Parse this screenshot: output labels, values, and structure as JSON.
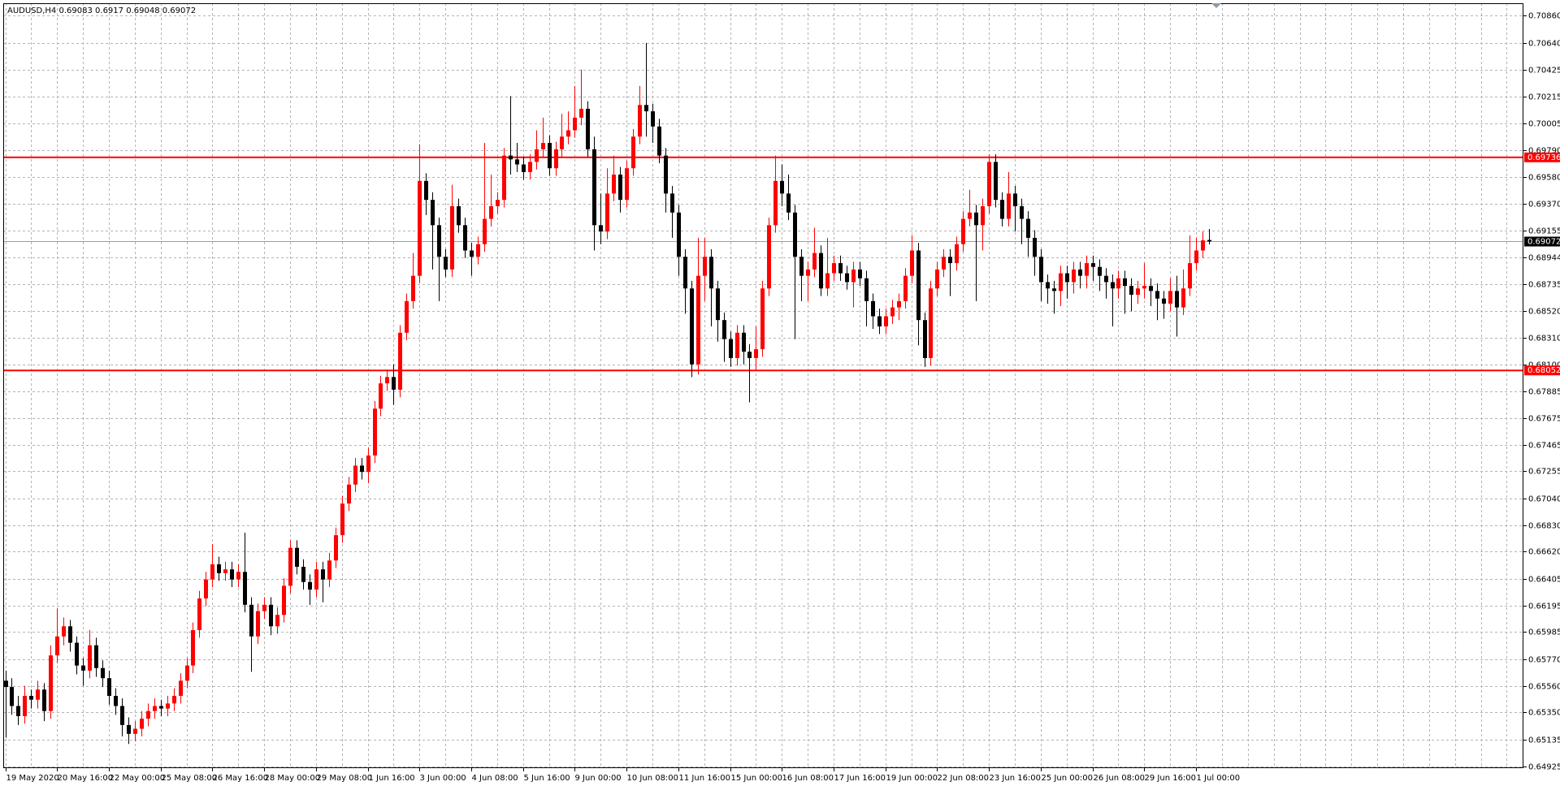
{
  "chart_data": {
    "type": "candlestick",
    "symbol": "AUDUSD,H4",
    "up_color": "#ff0000",
    "down_color": "#000000",
    "hline_color": "#ff0000",
    "price_line_color": "#8da2b8",
    "grid": true,
    "ylim": [
      0.64909,
      0.70954
    ],
    "yticks": [
      {
        "value": 0.7086,
        "label": "0.70860"
      },
      {
        "value": 0.7064,
        "label": "0.70640"
      },
      0.70425,
      0.70215,
      0.70005,
      {
        "value": 0.6979,
        "label": "0.69790"
      },
      {
        "value": 0.6958,
        "label": "0.69580"
      },
      {
        "value": 0.6937,
        "label": "0.69370"
      },
      0.69155,
      0.68944,
      0.68735,
      {
        "value": 0.6852,
        "label": "0.68520"
      },
      {
        "value": 0.6831,
        "label": "0.68310"
      },
      {
        "value": 0.681,
        "label": "0.68100"
      },
      0.67885,
      0.67675,
      0.67465,
      0.67255,
      {
        "value": 0.6704,
        "label": "0.67040"
      },
      {
        "value": 0.6683,
        "label": "0.66830"
      },
      {
        "value": 0.6662,
        "label": "0.66620"
      },
      0.66405,
      0.66195,
      0.65985,
      {
        "value": 0.6577,
        "label": "0.65770"
      },
      {
        "value": 0.6556,
        "label": "0.65560"
      },
      {
        "value": 0.6535,
        "label": "0.65350"
      },
      0.65135,
      0.64925
    ],
    "hlines": [
      0.69736,
      0.68052
    ],
    "categories": [
      "19 May 2020",
      null,
      null,
      null,
      null,
      null,
      null,
      null,
      "20 May 16:00",
      null,
      null,
      null,
      null,
      null,
      null,
      null,
      "22 May 00:00",
      null,
      null,
      null,
      null,
      null,
      null,
      null,
      "25 May 08:00",
      null,
      null,
      null,
      null,
      null,
      null,
      null,
      "26 May 16:00",
      null,
      null,
      null,
      null,
      null,
      null,
      null,
      "28 May 00:00",
      null,
      null,
      null,
      null,
      null,
      null,
      null,
      "29 May 08:00",
      null,
      null,
      null,
      null,
      null,
      null,
      null,
      "1 Jun 16:00",
      null,
      null,
      null,
      null,
      null,
      null,
      null,
      "3 Jun 00:00",
      null,
      null,
      null,
      null,
      null,
      null,
      null,
      "4 Jun 08:00",
      null,
      null,
      null,
      null,
      null,
      null,
      null,
      "5 Jun 16:00",
      null,
      null,
      null,
      null,
      null,
      null,
      null,
      "9 Jun 00:00",
      null,
      null,
      null,
      null,
      null,
      null,
      null,
      "10 Jun 08:00",
      null,
      null,
      null,
      null,
      null,
      null,
      null,
      "11 Jun 16:00",
      null,
      null,
      null,
      null,
      null,
      null,
      null,
      "15 Jun 00:00",
      null,
      null,
      null,
      null,
      null,
      null,
      null,
      "16 Jun 08:00",
      null,
      null,
      null,
      null,
      null,
      null,
      null,
      "17 Jun 16:00",
      null,
      null,
      null,
      null,
      null,
      null,
      null,
      "19 Jun 00:00",
      null,
      null,
      null,
      null,
      null,
      null,
      null,
      "22 Jun 08:00",
      null,
      null,
      null,
      null,
      null,
      null,
      null,
      "23 Jun 16:00",
      null,
      null,
      null,
      null,
      null,
      null,
      null,
      "25 Jun 00:00",
      null,
      null,
      null,
      null,
      null,
      null,
      null,
      "26 Jun 08:00",
      null,
      null,
      null,
      null,
      null,
      null,
      null,
      "29 Jun 16:00",
      null,
      null,
      null,
      null,
      null,
      null,
      null,
      "1 Jul 00:00",
      null,
      null
    ],
    "ohlc": [
      [
        0.656,
        0.6568,
        0.6515,
        0.6555
      ],
      [
        0.6555,
        0.6562,
        0.6533,
        0.654
      ],
      [
        0.654,
        0.6548,
        0.6525,
        0.6532
      ],
      [
        0.6532,
        0.6556,
        0.6526,
        0.6548
      ],
      [
        0.6548,
        0.6553,
        0.6538,
        0.6545
      ],
      [
        0.6545,
        0.656,
        0.6538,
        0.6553
      ],
      [
        0.6553,
        0.6558,
        0.6528,
        0.6536
      ],
      [
        0.6536,
        0.6588,
        0.653,
        0.658
      ],
      [
        0.658,
        0.6617,
        0.6574,
        0.6595
      ],
      [
        0.6595,
        0.661,
        0.6588,
        0.6603
      ],
      [
        0.6603,
        0.6608,
        0.6583,
        0.659
      ],
      [
        0.659,
        0.6595,
        0.6565,
        0.6572
      ],
      [
        0.6572,
        0.6578,
        0.6556,
        0.6568
      ],
      [
        0.6568,
        0.66,
        0.6562,
        0.6588
      ],
      [
        0.6588,
        0.6594,
        0.6563,
        0.657
      ],
      [
        0.657,
        0.6576,
        0.6555,
        0.6562
      ],
      [
        0.6562,
        0.6568,
        0.6541,
        0.6548
      ],
      [
        0.6548,
        0.6554,
        0.6533,
        0.654
      ],
      [
        0.654,
        0.6546,
        0.6516,
        0.6525
      ],
      [
        0.6525,
        0.6531,
        0.651,
        0.6518
      ],
      [
        0.6518,
        0.6528,
        0.6512,
        0.6522
      ],
      [
        0.6522,
        0.6536,
        0.6516,
        0.653
      ],
      [
        0.653,
        0.6542,
        0.6524,
        0.6536
      ],
      [
        0.6536,
        0.6546,
        0.653,
        0.654
      ],
      [
        0.654,
        0.6545,
        0.6532,
        0.6538
      ],
      [
        0.6538,
        0.6548,
        0.6532,
        0.6542
      ],
      [
        0.6542,
        0.6554,
        0.6536,
        0.6548
      ],
      [
        0.6548,
        0.6566,
        0.6542,
        0.656
      ],
      [
        0.656,
        0.6578,
        0.6554,
        0.6572
      ],
      [
        0.6572,
        0.6606,
        0.6566,
        0.66
      ],
      [
        0.66,
        0.6631,
        0.6594,
        0.6625
      ],
      [
        0.6625,
        0.6646,
        0.6619,
        0.664
      ],
      [
        0.664,
        0.6668,
        0.6634,
        0.6652
      ],
      [
        0.6652,
        0.6658,
        0.6639,
        0.6645
      ],
      [
        0.6645,
        0.6654,
        0.6639,
        0.6648
      ],
      [
        0.6648,
        0.6654,
        0.6634,
        0.664
      ],
      [
        0.664,
        0.6652,
        0.6634,
        0.6646
      ],
      [
        0.6646,
        0.6677,
        0.6614,
        0.662
      ],
      [
        0.662,
        0.6626,
        0.6567,
        0.6595
      ],
      [
        0.6595,
        0.6621,
        0.6589,
        0.6615
      ],
      [
        0.6615,
        0.6626,
        0.6609,
        0.662
      ],
      [
        0.662,
        0.6626,
        0.6596,
        0.6603
      ],
      [
        0.6603,
        0.6618,
        0.6597,
        0.6612
      ],
      [
        0.6612,
        0.6641,
        0.6606,
        0.6635
      ],
      [
        0.6635,
        0.6671,
        0.6629,
        0.6665
      ],
      [
        0.6665,
        0.6671,
        0.6644,
        0.665
      ],
      [
        0.665,
        0.6656,
        0.6632,
        0.6638
      ],
      [
        0.6638,
        0.6644,
        0.662,
        0.6632
      ],
      [
        0.6632,
        0.6654,
        0.6626,
        0.6648
      ],
      [
        0.6648,
        0.6654,
        0.6622,
        0.664
      ],
      [
        0.664,
        0.6661,
        0.6634,
        0.6655
      ],
      [
        0.6655,
        0.6681,
        0.6649,
        0.6675
      ],
      [
        0.6675,
        0.6706,
        0.6669,
        0.67
      ],
      [
        0.67,
        0.6721,
        0.6694,
        0.6715
      ],
      [
        0.6715,
        0.6736,
        0.6709,
        0.673
      ],
      [
        0.673,
        0.6736,
        0.6719,
        0.6725
      ],
      [
        0.6725,
        0.6744,
        0.6716,
        0.6738
      ],
      [
        0.6738,
        0.6781,
        0.6732,
        0.6775
      ],
      [
        0.6775,
        0.6801,
        0.6769,
        0.6795
      ],
      [
        0.6795,
        0.6806,
        0.6789,
        0.68
      ],
      [
        0.68,
        0.681,
        0.6778,
        0.679
      ],
      [
        0.679,
        0.6841,
        0.6784,
        0.6835
      ],
      [
        0.6835,
        0.6866,
        0.6829,
        0.686
      ],
      [
        0.686,
        0.6898,
        0.6854,
        0.688
      ],
      [
        0.688,
        0.6984,
        0.6874,
        0.6955
      ],
      [
        0.6955,
        0.6961,
        0.6928,
        0.694
      ],
      [
        0.694,
        0.6946,
        0.6885,
        0.692
      ],
      [
        0.692,
        0.6926,
        0.686,
        0.6895
      ],
      [
        0.6895,
        0.6901,
        0.6879,
        0.6885
      ],
      [
        0.6885,
        0.6952,
        0.6879,
        0.6935
      ],
      [
        0.6935,
        0.6941,
        0.6914,
        0.692
      ],
      [
        0.692,
        0.6926,
        0.6894,
        0.69
      ],
      [
        0.69,
        0.6906,
        0.688,
        0.6895
      ],
      [
        0.6895,
        0.6911,
        0.6889,
        0.6905
      ],
      [
        0.6905,
        0.6985,
        0.6899,
        0.6925
      ],
      [
        0.6925,
        0.696,
        0.6919,
        0.6935
      ],
      [
        0.6935,
        0.6946,
        0.6929,
        0.694
      ],
      [
        0.694,
        0.6981,
        0.6934,
        0.6975
      ],
      [
        0.6975,
        0.7022,
        0.696,
        0.6972
      ],
      [
        0.6972,
        0.6985,
        0.6962,
        0.6968
      ],
      [
        0.6968,
        0.6974,
        0.6956,
        0.6962
      ],
      [
        0.6962,
        0.6976,
        0.6956,
        0.697
      ],
      [
        0.697,
        0.6995,
        0.6964,
        0.698
      ],
      [
        0.698,
        0.7005,
        0.6974,
        0.6985
      ],
      [
        0.6985,
        0.6991,
        0.6959,
        0.6965
      ],
      [
        0.6965,
        0.6986,
        0.6959,
        0.698
      ],
      [
        0.698,
        0.7008,
        0.6974,
        0.699
      ],
      [
        0.699,
        0.701,
        0.6984,
        0.6995
      ],
      [
        0.6995,
        0.703,
        0.6989,
        0.7005
      ],
      [
        0.7005,
        0.7043,
        0.6999,
        0.7012
      ],
      [
        0.7012,
        0.7018,
        0.6974,
        0.698
      ],
      [
        0.698,
        0.699,
        0.69,
        0.692
      ],
      [
        0.692,
        0.6945,
        0.6905,
        0.6915
      ],
      [
        0.6915,
        0.6965,
        0.6909,
        0.6945
      ],
      [
        0.6945,
        0.6975,
        0.6939,
        0.696
      ],
      [
        0.696,
        0.6966,
        0.693,
        0.694
      ],
      [
        0.694,
        0.6971,
        0.6934,
        0.6965
      ],
      [
        0.6965,
        0.6996,
        0.6959,
        0.699
      ],
      [
        0.699,
        0.703,
        0.6984,
        0.7015
      ],
      [
        0.7015,
        0.7064,
        0.699,
        0.701
      ],
      [
        0.701,
        0.7016,
        0.6985,
        0.6998
      ],
      [
        0.6998,
        0.7004,
        0.6969,
        0.6975
      ],
      [
        0.6975,
        0.6981,
        0.693,
        0.6945
      ],
      [
        0.6945,
        0.6951,
        0.691,
        0.693
      ],
      [
        0.693,
        0.6936,
        0.688,
        0.6895
      ],
      [
        0.6895,
        0.6901,
        0.685,
        0.687
      ],
      [
        0.687,
        0.6876,
        0.68,
        0.681
      ],
      [
        0.681,
        0.691,
        0.6802,
        0.688
      ],
      [
        0.688,
        0.691,
        0.686,
        0.6895
      ],
      [
        0.6895,
        0.6901,
        0.684,
        0.687
      ],
      [
        0.687,
        0.6876,
        0.6828,
        0.6845
      ],
      [
        0.6845,
        0.6851,
        0.6812,
        0.683
      ],
      [
        0.683,
        0.6836,
        0.6808,
        0.6815
      ],
      [
        0.6815,
        0.6841,
        0.6809,
        0.6835
      ],
      [
        0.6835,
        0.6841,
        0.681,
        0.682
      ],
      [
        0.682,
        0.6826,
        0.678,
        0.6815
      ],
      [
        0.6815,
        0.684,
        0.6805,
        0.6822
      ],
      [
        0.6822,
        0.6876,
        0.6816,
        0.687
      ],
      [
        0.687,
        0.6926,
        0.6864,
        0.692
      ],
      [
        0.692,
        0.6975,
        0.6914,
        0.6955
      ],
      [
        0.6955,
        0.6968,
        0.6935,
        0.6945
      ],
      [
        0.6945,
        0.696,
        0.6924,
        0.693
      ],
      [
        0.693,
        0.6936,
        0.683,
        0.6895
      ],
      [
        0.6895,
        0.6901,
        0.686,
        0.688
      ],
      [
        0.688,
        0.6891,
        0.686,
        0.6885
      ],
      [
        0.6885,
        0.6918,
        0.6879,
        0.6898
      ],
      [
        0.6898,
        0.6904,
        0.6864,
        0.687
      ],
      [
        0.687,
        0.691,
        0.6864,
        0.6882
      ],
      [
        0.6882,
        0.6896,
        0.6876,
        0.689
      ],
      [
        0.689,
        0.6896,
        0.6876,
        0.6882
      ],
      [
        0.6882,
        0.6888,
        0.6869,
        0.6875
      ],
      [
        0.6875,
        0.6891,
        0.6855,
        0.6885
      ],
      [
        0.6885,
        0.6891,
        0.6872,
        0.6878
      ],
      [
        0.6878,
        0.6884,
        0.684,
        0.686
      ],
      [
        0.686,
        0.6866,
        0.6838,
        0.6848
      ],
      [
        0.6848,
        0.6854,
        0.6834,
        0.684
      ],
      [
        0.684,
        0.6854,
        0.6834,
        0.6848
      ],
      [
        0.6848,
        0.6861,
        0.6842,
        0.6855
      ],
      [
        0.6855,
        0.6866,
        0.6845,
        0.686
      ],
      [
        0.686,
        0.6886,
        0.6854,
        0.688
      ],
      [
        0.688,
        0.6912,
        0.6874,
        0.69
      ],
      [
        0.69,
        0.6906,
        0.6825,
        0.6845
      ],
      [
        0.6845,
        0.6851,
        0.6808,
        0.6815
      ],
      [
        0.6815,
        0.6876,
        0.6809,
        0.687
      ],
      [
        0.687,
        0.6891,
        0.6864,
        0.6885
      ],
      [
        0.6885,
        0.6901,
        0.6879,
        0.6895
      ],
      [
        0.6895,
        0.6901,
        0.6864,
        0.689
      ],
      [
        0.689,
        0.6911,
        0.6884,
        0.6905
      ],
      [
        0.6905,
        0.6931,
        0.6899,
        0.6925
      ],
      [
        0.6925,
        0.6948,
        0.6919,
        0.693
      ],
      [
        0.693,
        0.6936,
        0.686,
        0.692
      ],
      [
        0.692,
        0.6941,
        0.69,
        0.6935
      ],
      [
        0.6935,
        0.6976,
        0.6929,
        0.697
      ],
      [
        0.697,
        0.6976,
        0.6934,
        0.694
      ],
      [
        0.694,
        0.6946,
        0.6919,
        0.6925
      ],
      [
        0.6925,
        0.6962,
        0.6919,
        0.6945
      ],
      [
        0.6945,
        0.6951,
        0.6915,
        0.6935
      ],
      [
        0.6935,
        0.6941,
        0.6905,
        0.6925
      ],
      [
        0.6925,
        0.6931,
        0.6895,
        0.691
      ],
      [
        0.691,
        0.6916,
        0.688,
        0.6895
      ],
      [
        0.6895,
        0.6901,
        0.686,
        0.6875
      ],
      [
        0.6875,
        0.6881,
        0.6858,
        0.687
      ],
      [
        0.687,
        0.6876,
        0.685,
        0.6868
      ],
      [
        0.6868,
        0.6888,
        0.6856,
        0.6882
      ],
      [
        0.6882,
        0.6888,
        0.6862,
        0.6875
      ],
      [
        0.6875,
        0.6891,
        0.6866,
        0.6885
      ],
      [
        0.6885,
        0.6891,
        0.687,
        0.688
      ],
      [
        0.688,
        0.6896,
        0.687,
        0.689
      ],
      [
        0.689,
        0.6896,
        0.6876,
        0.6887
      ],
      [
        0.6887,
        0.6893,
        0.6868,
        0.688
      ],
      [
        0.688,
        0.6886,
        0.6862,
        0.6875
      ],
      [
        0.6875,
        0.6881,
        0.684,
        0.687
      ],
      [
        0.687,
        0.6884,
        0.6862,
        0.6878
      ],
      [
        0.6878,
        0.6884,
        0.685,
        0.6872
      ],
      [
        0.6872,
        0.6878,
        0.6852,
        0.6865
      ],
      [
        0.6865,
        0.6876,
        0.6858,
        0.687
      ],
      [
        0.687,
        0.689,
        0.6862,
        0.6872
      ],
      [
        0.6872,
        0.6878,
        0.6856,
        0.6868
      ],
      [
        0.6868,
        0.6874,
        0.6845,
        0.6862
      ],
      [
        0.6862,
        0.6868,
        0.6846,
        0.6858
      ],
      [
        0.6858,
        0.6878,
        0.6852,
        0.6868
      ],
      [
        0.6868,
        0.688,
        0.6832,
        0.6855
      ],
      [
        0.6855,
        0.6885,
        0.6849,
        0.687
      ],
      [
        0.687,
        0.6912,
        0.6864,
        0.689
      ],
      [
        0.689,
        0.691,
        0.6884,
        0.69
      ],
      [
        0.69,
        0.6915,
        0.6894,
        0.6908
      ],
      [
        0.69083,
        0.6917,
        0.69048,
        0.69072
      ]
    ]
  }
}
